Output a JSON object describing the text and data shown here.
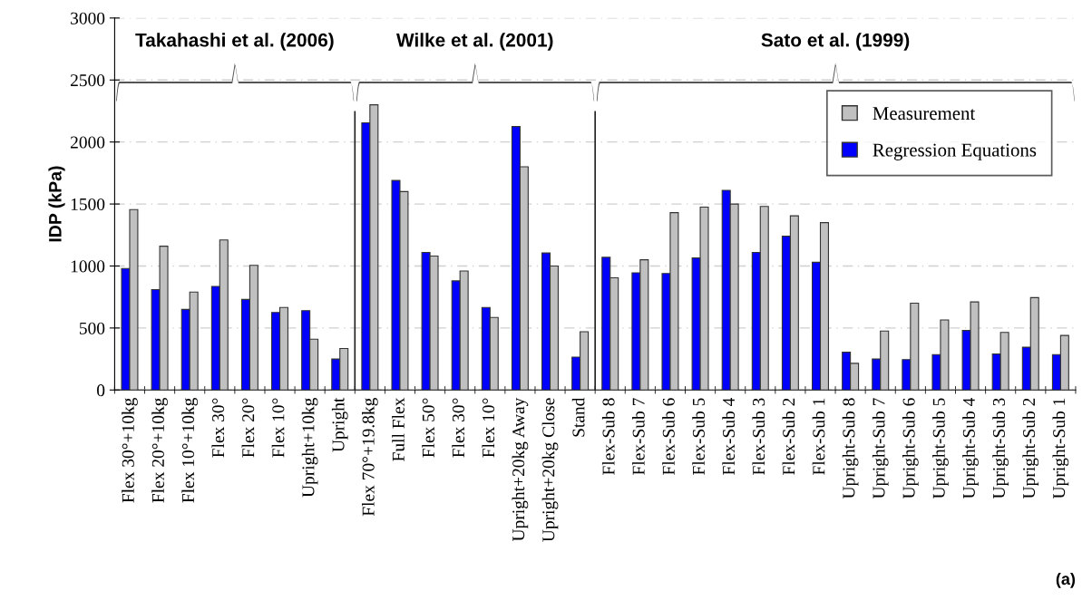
{
  "chart_data": {
    "type": "bar",
    "ylabel": "IDP (kPa)",
    "categories": [
      "Flex 30°+10kg",
      "Flex 20°+10kg",
      "Flex 10°+10kg",
      "Flex 30°",
      "Flex 20°",
      "Flex 10°",
      "Upright+10kg",
      "Upright",
      "Flex 70°+19.8kg",
      "Full Flex",
      "Flex 50°",
      "Flex 30°",
      "Flex 10°",
      "Upright+20kg Away",
      "Upright+20kg Close",
      "Stand",
      "Flex-Sub 8",
      "Flex-Sub 7",
      "Flex-Sub 6",
      "Flex-Sub 5",
      "Flex-Sub 4",
      "Flex-Sub 3",
      "Flex-Sub 2",
      "Flex-Sub 1",
      "Upright-Sub 8",
      "Upright-Sub 7",
      "Upright-Sub 6",
      "Upright-Sub 5",
      "Upright-Sub 4",
      "Upright-Sub 3",
      "Upright-Sub 2",
      "Upright-Sub 1"
    ],
    "series": [
      {
        "name": "Regression Equations",
        "color": "#0000ff",
        "values": [
          980,
          810,
          650,
          835,
          730,
          625,
          640,
          250,
          2155,
          1690,
          1110,
          880,
          665,
          2125,
          1105,
          265,
          1070,
          945,
          940,
          1065,
          1610,
          1110,
          1240,
          1030,
          305,
          250,
          245,
          285,
          480,
          290,
          345,
          285
        ]
      },
      {
        "name": "Measurement",
        "color": "#c0c0c0",
        "values": [
          1455,
          1160,
          790,
          1210,
          1005,
          665,
          410,
          335,
          2300,
          1600,
          1080,
          960,
          585,
          1800,
          1000,
          470,
          905,
          1050,
          1430,
          1475,
          1500,
          1480,
          1405,
          1350,
          215,
          475,
          700,
          565,
          710,
          465,
          745,
          440
        ]
      }
    ],
    "ylim": [
      0,
      3000
    ],
    "yticks": [
      0,
      500,
      1000,
      1500,
      2000,
      2500,
      3000
    ],
    "grid": "y",
    "legend": "top right",
    "annotations": [
      "Takahashi et al. (2006)",
      "Wilke et al. (2001)",
      "Sato et al. (1999)",
      "(a)"
    ]
  }
}
